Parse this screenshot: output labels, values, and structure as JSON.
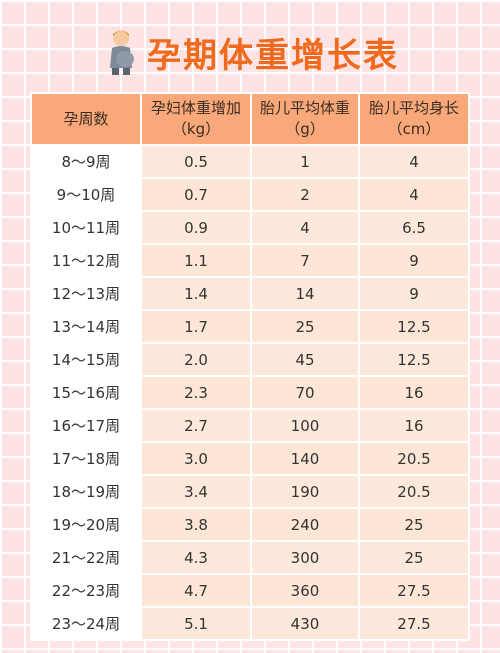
{
  "title": "孕期体重增长表",
  "icon": "pregnant-woman-icon",
  "colors": {
    "accent": "#f06a1e",
    "header": "#f9a879",
    "cell": "#fde6d6",
    "background": "#fde3e4"
  },
  "table": {
    "headers": [
      {
        "line1": "孕周数",
        "line2": ""
      },
      {
        "line1": "孕妇体重增加",
        "line2": "（kg）"
      },
      {
        "line1": "胎儿平均体重",
        "line2": "（g）"
      },
      {
        "line1": "胎儿平均身长",
        "line2": "（cm）"
      }
    ],
    "rows": [
      [
        "8～9周",
        "0.5",
        "1",
        "4"
      ],
      [
        "9～10周",
        "0.7",
        "2",
        "4"
      ],
      [
        "10～11周",
        "0.9",
        "4",
        "6.5"
      ],
      [
        "11～12周",
        "1.1",
        "7",
        "9"
      ],
      [
        "12～13周",
        "1.4",
        "14",
        "9"
      ],
      [
        "13～14周",
        "1.7",
        "25",
        "12.5"
      ],
      [
        "14～15周",
        "2.0",
        "45",
        "12.5"
      ],
      [
        "15～16周",
        "2.3",
        "70",
        "16"
      ],
      [
        "16～17周",
        "2.7",
        "100",
        "16"
      ],
      [
        "17～18周",
        "3.0",
        "140",
        "20.5"
      ],
      [
        "18～19周",
        "3.4",
        "190",
        "20.5"
      ],
      [
        "19～20周",
        "3.8",
        "240",
        "25"
      ],
      [
        "21～22周",
        "4.3",
        "300",
        "25"
      ],
      [
        "22～23周",
        "4.7",
        "360",
        "27.5"
      ],
      [
        "23～24周",
        "5.1",
        "430",
        "27.5"
      ]
    ]
  }
}
